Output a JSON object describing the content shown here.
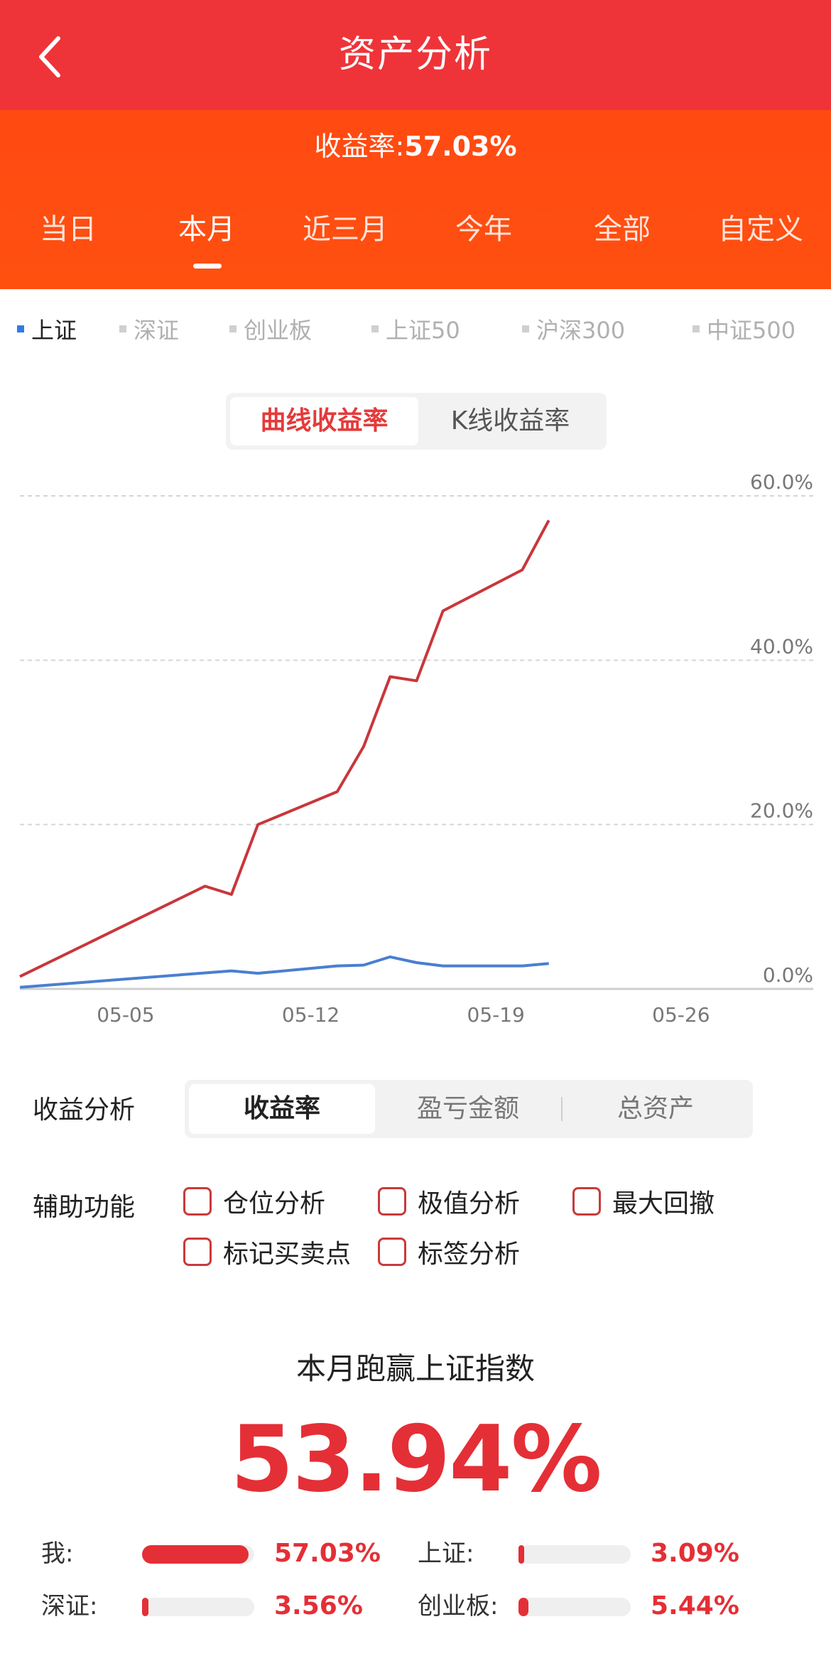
{
  "header": {
    "title": "资产分析",
    "back_icon": "chevron-left-icon"
  },
  "summary": {
    "yield_label": "收益率:",
    "yield_value": "57.03%",
    "tabs": [
      "当日",
      "本月",
      "近三月",
      "今年",
      "全部",
      "自定义"
    ],
    "active_tab": "本月"
  },
  "indices": {
    "items": [
      "上证",
      "深证",
      "创业板",
      "上证50",
      "沪深300",
      "中证500"
    ],
    "active": "上证"
  },
  "chart_toggle": {
    "active": "曲线收益率",
    "inactive": "K线收益率"
  },
  "chart_data": {
    "type": "line",
    "x_ticks": [
      "05-05",
      "05-12",
      "05-19",
      "05-26"
    ],
    "y_ticks": [
      "60.0%",
      "40.0%",
      "20.0%",
      "0.0%"
    ],
    "ylim": [
      0,
      60
    ],
    "y_unit": "%",
    "grid": true,
    "x_domain": [
      "2024-05-01",
      "2024-05-31"
    ],
    "series": [
      {
        "color": "#c8373b",
        "x": [
          "2024-05-01",
          "2024-05-08",
          "2024-05-09",
          "2024-05-10",
          "2024-05-13",
          "2024-05-14",
          "2024-05-15",
          "2024-05-16",
          "2024-05-17",
          "2024-05-20",
          "2024-05-21"
        ],
        "values": [
          1.5,
          12.5,
          11.5,
          20.0,
          24.0,
          29.5,
          38.0,
          37.5,
          46.0,
          51.0,
          57.03
        ]
      },
      {
        "color": "#4a7fd0",
        "x": [
          "2024-05-01",
          "2024-05-09",
          "2024-05-10",
          "2024-05-13",
          "2024-05-14",
          "2024-05-15",
          "2024-05-16",
          "2024-05-17",
          "2024-05-20",
          "2024-05-21"
        ],
        "values": [
          0.2,
          2.2,
          1.9,
          2.8,
          2.9,
          3.9,
          3.2,
          2.8,
          2.8,
          3.09
        ]
      }
    ]
  },
  "analysis": {
    "label": "收益分析",
    "options": [
      "收益率",
      "盈亏金额",
      "总资产"
    ],
    "active": "收益率"
  },
  "aux": {
    "label": "辅助功能",
    "options": [
      "仓位分析",
      "极值分析",
      "最大回撤",
      "标记买卖点",
      "标签分析"
    ]
  },
  "beat": {
    "title": "本月跑赢上证指数",
    "value": "53.94%"
  },
  "comparison": [
    {
      "label": "我:",
      "value": "57.03%",
      "level": 0.95
    },
    {
      "label": "上证:",
      "value": "3.09%",
      "level": 0.05
    },
    {
      "label": "深证:",
      "value": "3.56%",
      "level": 0.06
    },
    {
      "label": "创业板:",
      "value": "5.44%",
      "level": 0.09
    }
  ],
  "colors": {
    "header": "#ee3439",
    "summary": "#ff4e10",
    "accent": "#e42f36",
    "blue": "#2f7be5"
  }
}
